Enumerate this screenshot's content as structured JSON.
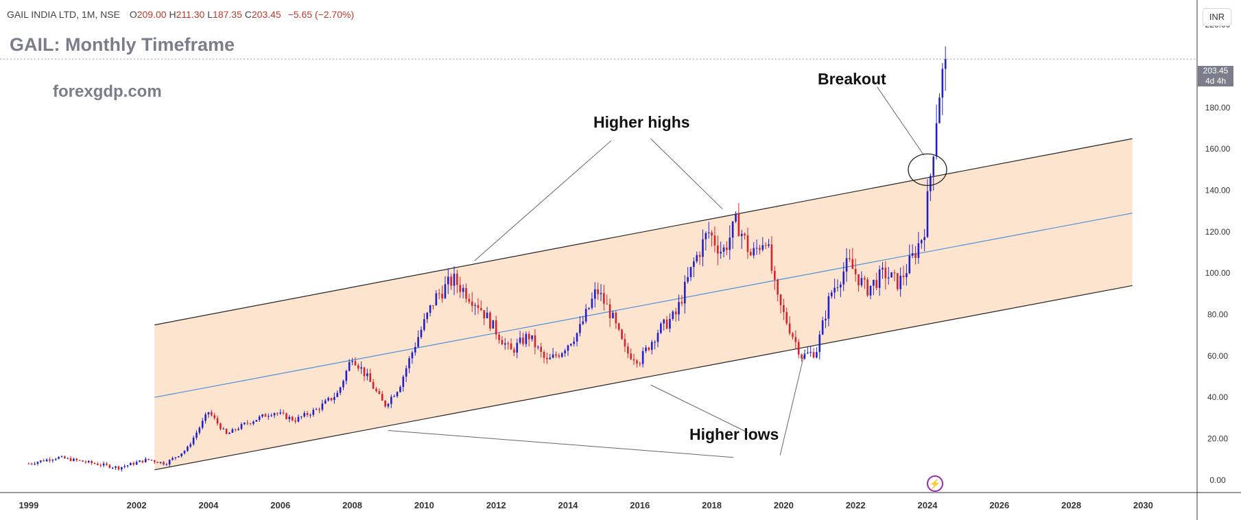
{
  "header": {
    "symbol_line": "GAIL INDIA LTD, 1M, NSE",
    "open_label": "O",
    "open": "209.00",
    "high_label": "H",
    "high": "211.30",
    "low_label": "L",
    "low": "187.35",
    "close_label": "C",
    "close": "203.45",
    "change": "−5.65 (−2.70%)"
  },
  "currency_button": "INR",
  "chart_title": "GAIL: Monthly Timeframe",
  "watermark": "forexgdp.com",
  "price_tag": {
    "price": "203.45",
    "countdown": "4d 4h"
  },
  "annotations": {
    "breakout": "Breakout",
    "higher_highs": "Higher highs",
    "higher_lows": "Higher lows"
  },
  "colors": {
    "up": "#2121c9",
    "down": "#d4232b",
    "channel_fill": "#fde4cf",
    "midline": "#4a90d9",
    "channel_line": "#222222",
    "price_tag_bg": "#7a7e8a"
  },
  "icons": [
    "tradingview-logo-icon"
  ],
  "chart_data": {
    "type": "candlestick",
    "title": "GAIL: Monthly Timeframe",
    "timeframe": "1M",
    "x_ticks": [
      "1999",
      "2002",
      "2004",
      "2006",
      "2008",
      "2010",
      "2012",
      "2014",
      "2016",
      "2018",
      "2020",
      "2022",
      "2024",
      "2026",
      "2028",
      "2030"
    ],
    "y_ticks": [
      "0.00",
      "20.00",
      "40.00",
      "60.00",
      "80.00",
      "100.00",
      "120.00",
      "140.00",
      "160.00",
      "180.00",
      "200.00",
      "220.00"
    ],
    "ylim": [
      -6,
      230
    ],
    "xlim": [
      1998.2,
      2031.5
    ],
    "channel": {
      "upper": [
        [
          2002.5,
          75
        ],
        [
          2029.7,
          165
        ]
      ],
      "middle": [
        [
          2002.5,
          40
        ],
        [
          2029.7,
          129
        ]
      ],
      "lower": [
        [
          2002.5,
          5
        ],
        [
          2029.7,
          94
        ]
      ]
    },
    "price_path": [
      [
        1999.0,
        8
      ],
      [
        1999.8,
        11
      ],
      [
        2000.5,
        9
      ],
      [
        2001.5,
        6
      ],
      [
        2002.3,
        10
      ],
      [
        2002.8,
        8
      ],
      [
        2003.4,
        15
      ],
      [
        2004.0,
        33
      ],
      [
        2004.5,
        22
      ],
      [
        2005.0,
        27
      ],
      [
        2005.8,
        33
      ],
      [
        2006.4,
        29
      ],
      [
        2007.0,
        34
      ],
      [
        2007.6,
        42
      ],
      [
        2008.0,
        60
      ],
      [
        2008.4,
        50
      ],
      [
        2008.9,
        36
      ],
      [
        2009.3,
        45
      ],
      [
        2009.8,
        68
      ],
      [
        2010.3,
        88
      ],
      [
        2010.8,
        97
      ],
      [
        2011.5,
        85
      ],
      [
        2012.0,
        72
      ],
      [
        2012.4,
        62
      ],
      [
        2012.9,
        70
      ],
      [
        2013.4,
        57
      ],
      [
        2013.8,
        62
      ],
      [
        2014.3,
        72
      ],
      [
        2014.8,
        92
      ],
      [
        2015.2,
        80
      ],
      [
        2015.6,
        62
      ],
      [
        2016.0,
        58
      ],
      [
        2016.5,
        72
      ],
      [
        2017.0,
        80
      ],
      [
        2017.5,
        105
      ],
      [
        2017.9,
        120
      ],
      [
        2018.3,
        110
      ],
      [
        2018.7,
        125
      ],
      [
        2019.1,
        108
      ],
      [
        2019.5,
        118
      ],
      [
        2019.8,
        88
      ],
      [
        2020.2,
        72
      ],
      [
        2020.5,
        60
      ],
      [
        2020.9,
        62
      ],
      [
        2021.3,
        90
      ],
      [
        2021.8,
        105
      ],
      [
        2022.3,
        92
      ],
      [
        2022.8,
        100
      ],
      [
        2023.2,
        95
      ],
      [
        2023.6,
        108
      ],
      [
        2023.9,
        120
      ],
      [
        2024.1,
        150
      ],
      [
        2024.3,
        185
      ],
      [
        2024.5,
        203.45
      ]
    ],
    "current_price": 203.45
  }
}
